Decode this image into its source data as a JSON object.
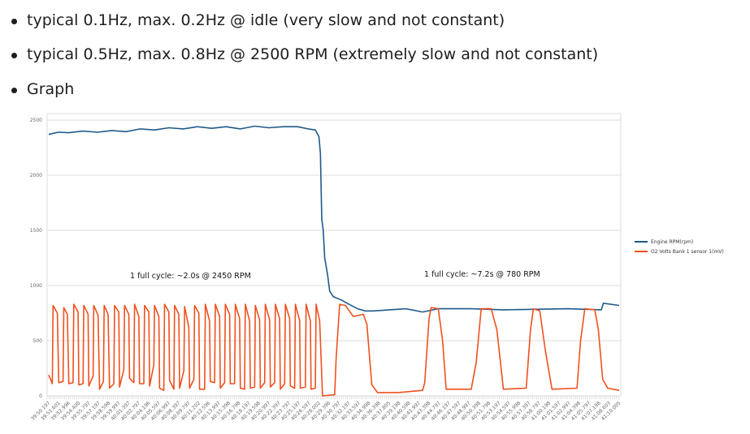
{
  "bullets": [
    "typical 0.1Hz, max. 0.2Hz @ idle (very slow and not constant)",
    "typical 0.5Hz, max. 0.8Hz @ 2500 RPM (extremely slow and not constant)",
    "Graph"
  ],
  "chart_data": {
    "type": "line",
    "title": "",
    "xlabel": "",
    "ylabel": "",
    "ylim": [
      0,
      2550
    ],
    "yticks": [
      0,
      500,
      1000,
      1500,
      2000,
      2500
    ],
    "grid": true,
    "legend_placement": "right",
    "x_tick_labels": [
      "39:50.197",
      "39:51.601",
      "39:52.996",
      "39:54.400",
      "39:55.797",
      "39:57.197",
      "39:58.598",
      "39:59.997",
      "40:01.397",
      "40:02.797",
      "40:04.196",
      "40:05.597",
      "40:06.997",
      "40:08.397",
      "40:09.797",
      "40:11.202",
      "40:12.596",
      "40:13.997",
      "40:15.398",
      "40:16.798",
      "40:18.197",
      "40:19.598",
      "40:20.997",
      "40:22.397",
      "40:23.797",
      "40:25.197",
      "40:26.597",
      "40:28.002",
      "40:29.396",
      "40:30.797",
      "40:32.197",
      "40:33.597",
      "40:34.998",
      "40:36.398",
      "40:37.805",
      "40:39.198",
      "40:40.598",
      "40:41.997",
      "40:43.398",
      "40:44.797",
      "40:46.197",
      "40:47.597",
      "40:48.997",
      "40:50.398",
      "40:51.798",
      "40:53.197",
      "40:54.597",
      "40:55.998",
      "40:57.397",
      "40:58.797",
      "41:00.198",
      "41:01.597",
      "41:02.997",
      "41:04.398",
      "41:05.797",
      "41:07.198",
      "41:08.603",
      "41:10.005"
    ],
    "annotations": [
      "1 full cycle: ~2.0s @ 2450 RPM",
      "1 full cycle: ~7.2s @ 780 RPM"
    ],
    "series": [
      {
        "name": "Engine RPM(rpm)",
        "color": "#1f5a8c",
        "points": [
          [
            "39:50.2",
            2370
          ],
          [
            "39:51.5",
            2390
          ],
          [
            "39:53.0",
            2385
          ],
          [
            "39:55.0",
            2400
          ],
          [
            "39:57.0",
            2390
          ],
          [
            "39:59.0",
            2405
          ],
          [
            "40:01.0",
            2395
          ],
          [
            "40:03.0",
            2420
          ],
          [
            "40:05.0",
            2410
          ],
          [
            "40:07.0",
            2430
          ],
          [
            "40:09.0",
            2420
          ],
          [
            "40:11.0",
            2440
          ],
          [
            "40:13.0",
            2425
          ],
          [
            "40:15.0",
            2440
          ],
          [
            "40:17.0",
            2420
          ],
          [
            "40:19.0",
            2445
          ],
          [
            "40:21.0",
            2430
          ],
          [
            "40:23.0",
            2440
          ],
          [
            "40:25.0",
            2440
          ],
          [
            "40:26.5",
            2420
          ],
          [
            "40:27.5",
            2410
          ],
          [
            "40:28.0",
            2350
          ],
          [
            "40:28.2",
            2200
          ],
          [
            "40:28.4",
            1600
          ],
          [
            "40:28.6",
            1500
          ],
          [
            "40:28.8",
            1250
          ],
          [
            "40:29.2",
            1100
          ],
          [
            "40:29.5",
            950
          ],
          [
            "40:30.0",
            900
          ],
          [
            "40:31.1",
            870
          ],
          [
            "40:32.2",
            830
          ],
          [
            "40:33.4",
            790
          ],
          [
            "40:34.5",
            770
          ],
          [
            "40:35.6",
            770
          ],
          [
            "40:37.9",
            780
          ],
          [
            "40:40.2",
            790
          ],
          [
            "40:42.5",
            760
          ],
          [
            "40:44.7",
            790
          ],
          [
            "40:49.3",
            790
          ],
          [
            "40:53.8",
            780
          ],
          [
            "41:02.9",
            790
          ],
          [
            "41:07.5",
            780
          ],
          [
            "41:07.8",
            840
          ],
          [
            "41:10.0",
            820
          ]
        ]
      },
      {
        "name": "O2 Volts Bank 1 sensor 1(mV)",
        "color": "#f0501e",
        "points": [
          [
            "39:50.2",
            190
          ],
          [
            "39:50.7",
            110
          ],
          [
            "39:50.8",
            820
          ],
          [
            "39:51.4",
            750
          ],
          [
            "39:51.6",
            120
          ],
          [
            "39:52.2",
            130
          ],
          [
            "39:52.3",
            800
          ],
          [
            "39:52.8",
            740
          ],
          [
            "39:53.0",
            110
          ],
          [
            "39:53.6",
            120
          ],
          [
            "39:53.7",
            830
          ],
          [
            "39:54.3",
            760
          ],
          [
            "39:54.4",
            100
          ],
          [
            "39:55.0",
            110
          ],
          [
            "39:55.1",
            820
          ],
          [
            "39:55.7",
            740
          ],
          [
            "39:55.8",
            90
          ],
          [
            "39:56.4",
            180
          ],
          [
            "39:56.5",
            820
          ],
          [
            "39:57.1",
            730
          ],
          [
            "39:57.3",
            60
          ],
          [
            "39:57.85",
            130
          ],
          [
            "39:57.95",
            820
          ],
          [
            "39:58.5",
            740
          ],
          [
            "39:58.7",
            70
          ],
          [
            "39:59.3",
            110
          ],
          [
            "39:59.4",
            820
          ],
          [
            "40:00.0",
            760
          ],
          [
            "40:00.1",
            80
          ],
          [
            "40:00.7",
            240
          ],
          [
            "40:00.8",
            820
          ],
          [
            "40:01.4",
            740
          ],
          [
            "40:01.5",
            160
          ],
          [
            "40:02.1",
            120
          ],
          [
            "40:02.2",
            830
          ],
          [
            "40:02.8",
            720
          ],
          [
            "40:02.9",
            110
          ],
          [
            "40:03.5",
            110
          ],
          [
            "40:03.6",
            820
          ],
          [
            "40:04.2",
            760
          ],
          [
            "40:04.3",
            90
          ],
          [
            "40:04.9",
            280
          ],
          [
            "40:05.0",
            820
          ],
          [
            "40:05.6",
            720
          ],
          [
            "40:05.7",
            70
          ],
          [
            "40:06.3",
            50
          ],
          [
            "40:06.4",
            830
          ],
          [
            "40:07.0",
            760
          ],
          [
            "40:07.1",
            140
          ],
          [
            "40:07.7",
            60
          ],
          [
            "40:07.8",
            820
          ],
          [
            "40:08.4",
            740
          ],
          [
            "40:08.5",
            70
          ],
          [
            "40:09.1",
            230
          ],
          [
            "40:09.2",
            810
          ],
          [
            "40:09.8",
            620
          ],
          [
            "40:09.9",
            70
          ],
          [
            "40:10.5",
            150
          ],
          [
            "40:10.6",
            820
          ],
          [
            "40:11.2",
            750
          ],
          [
            "40:11.3",
            60
          ],
          [
            "40:12.0",
            60
          ],
          [
            "40:12.1",
            830
          ],
          [
            "40:12.7",
            680
          ],
          [
            "40:12.8",
            130
          ],
          [
            "40:13.4",
            120
          ],
          [
            "40:13.5",
            830
          ],
          [
            "40:14.1",
            720
          ],
          [
            "40:14.2",
            70
          ],
          [
            "40:14.8",
            120
          ],
          [
            "40:14.9",
            830
          ],
          [
            "40:15.5",
            740
          ],
          [
            "40:15.6",
            110
          ],
          [
            "40:16.2",
            110
          ],
          [
            "40:16.3",
            830
          ],
          [
            "40:16.9",
            700
          ],
          [
            "40:17.0",
            70
          ],
          [
            "40:17.6",
            60
          ],
          [
            "40:17.7",
            830
          ],
          [
            "40:18.3",
            680
          ],
          [
            "40:18.4",
            70
          ],
          [
            "40:19.0",
            80
          ],
          [
            "40:19.1",
            820
          ],
          [
            "40:19.7",
            690
          ],
          [
            "40:19.8",
            70
          ],
          [
            "40:20.4",
            120
          ],
          [
            "40:20.5",
            830
          ],
          [
            "40:21.1",
            690
          ],
          [
            "40:21.2",
            80
          ],
          [
            "40:21.8",
            120
          ],
          [
            "40:21.9",
            830
          ],
          [
            "40:22.5",
            700
          ],
          [
            "40:22.6",
            60
          ],
          [
            "40:23.2",
            110
          ],
          [
            "40:23.3",
            830
          ],
          [
            "40:23.9",
            700
          ],
          [
            "40:24.0",
            90
          ],
          [
            "40:24.6",
            70
          ],
          [
            "40:24.7",
            830
          ],
          [
            "40:25.3",
            680
          ],
          [
            "40:25.4",
            70
          ],
          [
            "40:26.1",
            80
          ],
          [
            "40:26.2",
            830
          ],
          [
            "40:26.8",
            680
          ],
          [
            "40:26.9",
            60
          ],
          [
            "40:27.5",
            70
          ],
          [
            "40:27.6",
            830
          ],
          [
            "40:28.1",
            680
          ],
          [
            "40:28.5",
            0
          ],
          [
            "40:30.2",
            10
          ],
          [
            "40:30.4",
            330
          ],
          [
            "40:30.9",
            830
          ],
          [
            "40:31.7",
            820
          ],
          [
            "40:32.8",
            720
          ],
          [
            "40:34.2",
            740
          ],
          [
            "40:34.7",
            650
          ],
          [
            "40:35.4",
            100
          ],
          [
            "40:36.2",
            30
          ],
          [
            "40:39.1",
            30
          ],
          [
            "40:42.5",
            50
          ],
          [
            "40:42.8",
            120
          ],
          [
            "40:43.4",
            700
          ],
          [
            "40:43.7",
            800
          ],
          [
            "40:44.7",
            790
          ],
          [
            "40:45.3",
            500
          ],
          [
            "40:45.8",
            60
          ],
          [
            "40:49.3",
            60
          ],
          [
            "40:50.0",
            300
          ],
          [
            "40:50.7",
            790
          ],
          [
            "40:52.1",
            790
          ],
          [
            "40:52.9",
            600
          ],
          [
            "40:53.8",
            60
          ],
          [
            "40:57.0",
            70
          ],
          [
            "40:57.6",
            600
          ],
          [
            "40:58.0",
            790
          ],
          [
            "40:58.9",
            770
          ],
          [
            "40:59.7",
            400
          ],
          [
            "41:00.6",
            60
          ],
          [
            "41:04.1",
            70
          ],
          [
            "41:04.6",
            500
          ],
          [
            "41:05.2",
            790
          ],
          [
            "41:06.6",
            780
          ],
          [
            "41:07.1",
            600
          ],
          [
            "41:07.7",
            150
          ],
          [
            "41:08.4",
            70
          ],
          [
            "41:10.0",
            50
          ]
        ]
      }
    ]
  }
}
